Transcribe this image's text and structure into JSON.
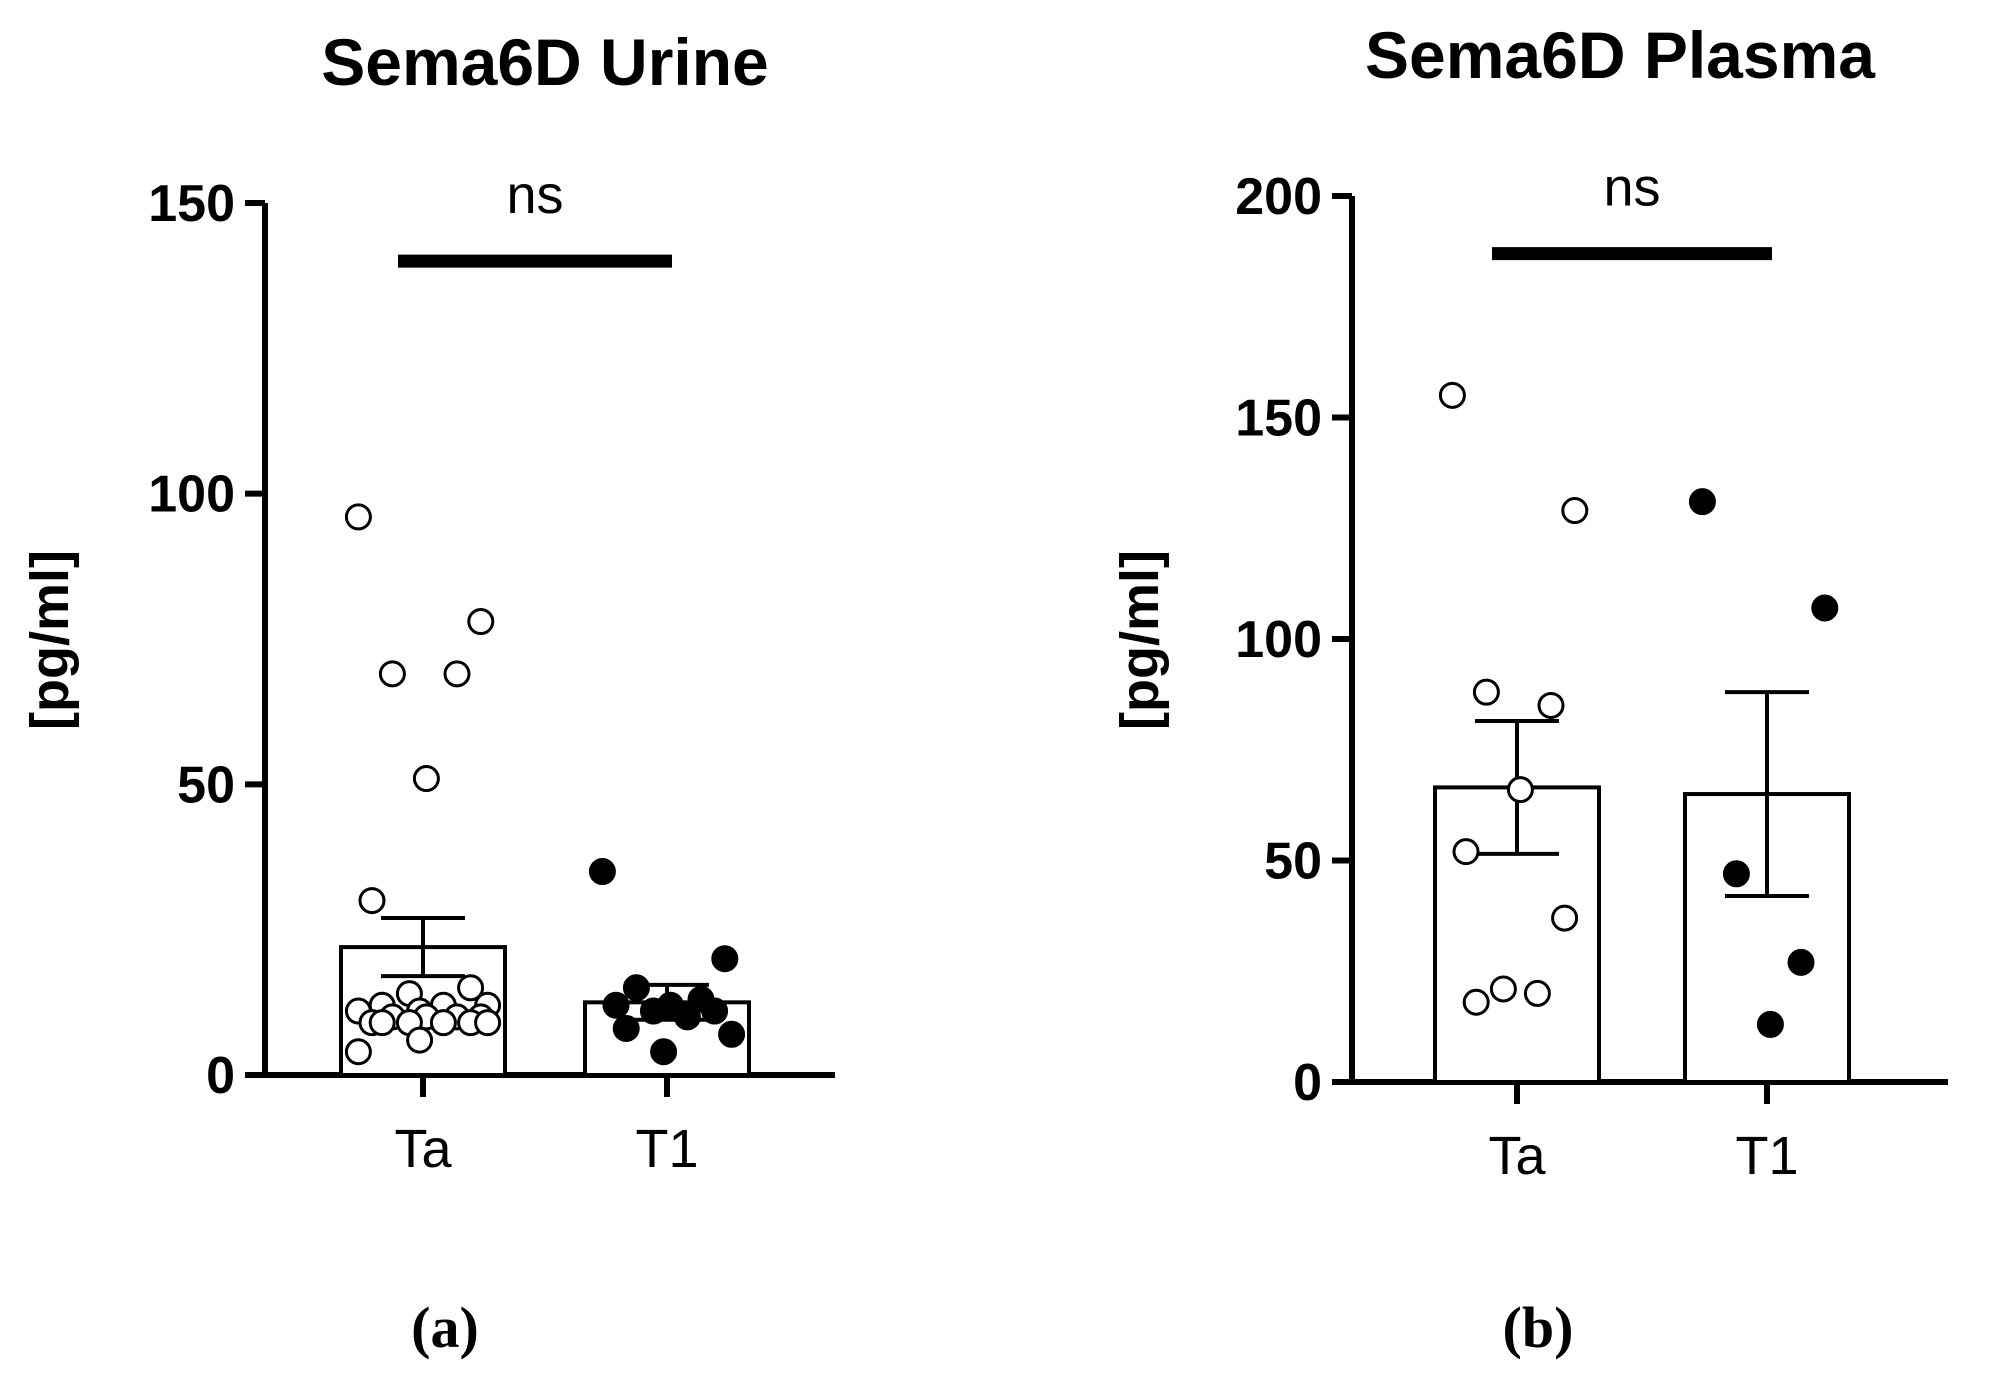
{
  "chart_data": [
    {
      "type": "bar",
      "title": "Sema6D Urine",
      "ylabel": "[pg/ml]",
      "xlabel": "",
      "ylim": [
        0,
        150
      ],
      "yticks": [
        0,
        50,
        100,
        150
      ],
      "categories": [
        "Ta",
        "T1"
      ],
      "panel_label": "(a)",
      "series": [
        {
          "category": "Ta",
          "mean": 22,
          "sem": 5,
          "marker": "open",
          "points": [
            96,
            78,
            69,
            69,
            51,
            30,
            15,
            14,
            12,
            12,
            12,
            11,
            11,
            10,
            10,
            10,
            10,
            9,
            9,
            9,
            9,
            9,
            9,
            6,
            4
          ]
        },
        {
          "category": "T1",
          "mean": 12.5,
          "sem": 3,
          "marker": "filled",
          "points": [
            35,
            20,
            15,
            13,
            12,
            12,
            11,
            11,
            10,
            8,
            7,
            4
          ]
        }
      ],
      "significance": {
        "pair": [
          "Ta",
          "T1"
        ],
        "label": "ns",
        "y": 140
      }
    },
    {
      "type": "bar",
      "title": "Sema6D Plasma",
      "ylabel": "[pg/ml]",
      "xlabel": "",
      "ylim": [
        0,
        200
      ],
      "yticks": [
        0,
        50,
        100,
        150,
        200
      ],
      "categories": [
        "Ta",
        "T1"
      ],
      "panel_label": "(b)",
      "series": [
        {
          "category": "Ta",
          "mean": 66.5,
          "sem": 15,
          "marker": "open",
          "points": [
            155,
            129,
            88,
            85,
            66,
            52,
            37,
            21,
            20,
            18
          ]
        },
        {
          "category": "T1",
          "mean": 65,
          "sem": 23,
          "marker": "filled",
          "points": [
            131,
            107,
            47,
            27,
            13
          ]
        }
      ],
      "significance": {
        "pair": [
          "Ta",
          "T1"
        ],
        "label": "ns",
        "y": 187
      }
    }
  ]
}
